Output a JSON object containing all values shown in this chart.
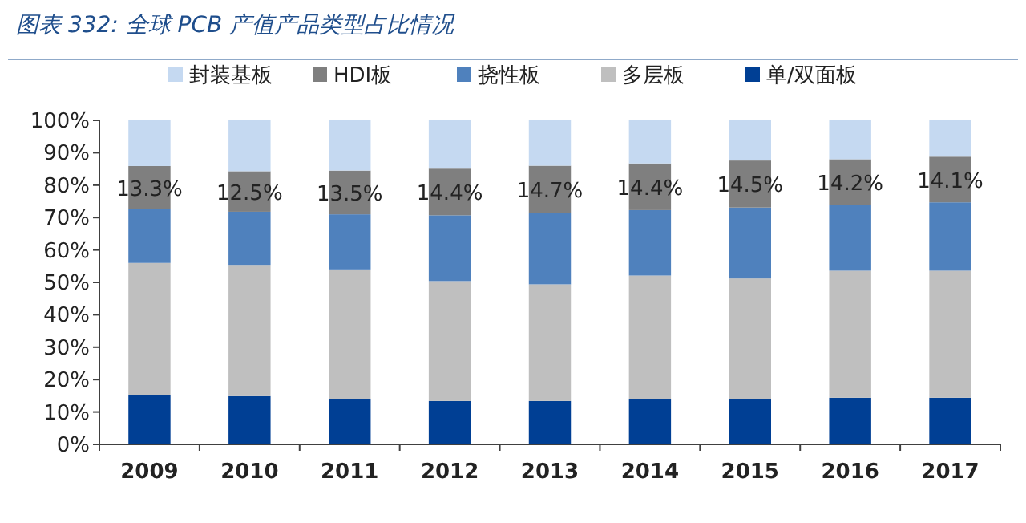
{
  "chart_data": {
    "type": "bar",
    "stacked": true,
    "title": "图表 332:  全球 PCB 产值产品类型占比情况",
    "categories": [
      "2009",
      "2010",
      "2011",
      "2012",
      "2013",
      "2014",
      "2015",
      "2016",
      "2017"
    ],
    "series": [
      {
        "name": "单/双面板",
        "color": "#003f94",
        "values": [
          15.2,
          14.9,
          14.0,
          13.4,
          13.4,
          14.0,
          14.0,
          14.4,
          14.4
        ]
      },
      {
        "name": "多层板",
        "color": "#bfbfbf",
        "values": [
          40.8,
          40.5,
          40.0,
          37.0,
          36.0,
          38.1,
          37.2,
          39.2,
          39.2
        ]
      },
      {
        "name": "挠性板",
        "color": "#4f81bd",
        "values": [
          16.6,
          16.4,
          17.0,
          20.3,
          21.9,
          20.2,
          21.9,
          20.2,
          21.1
        ]
      },
      {
        "name": "HDI板",
        "color": "#7f7f7f",
        "values": [
          13.3,
          12.5,
          13.5,
          14.4,
          14.7,
          14.4,
          14.5,
          14.2,
          14.1
        ],
        "value_labels": [
          "13.3%",
          "12.5%",
          "13.5%",
          "14.4%",
          "14.7%",
          "14.4%",
          "14.5%",
          "14.2%",
          "14.1%"
        ]
      },
      {
        "name": "封装基板",
        "color": "#c5d9f1",
        "values": [
          14.1,
          15.7,
          15.5,
          14.9,
          14.0,
          13.3,
          12.4,
          12.0,
          11.2
        ]
      }
    ],
    "ylim": [
      0,
      100
    ],
    "yticks": [
      {
        "value": 0,
        "label": "0%"
      },
      {
        "value": 10,
        "label": "10%"
      },
      {
        "value": 20,
        "label": "20%"
      },
      {
        "value": 30,
        "label": "30%"
      },
      {
        "value": 40,
        "label": "40%"
      },
      {
        "value": 50,
        "label": "50%"
      },
      {
        "value": 60,
        "label": "60%"
      },
      {
        "value": 70,
        "label": "70%"
      },
      {
        "value": 80,
        "label": "80%"
      },
      {
        "value": 90,
        "label": "90%"
      },
      {
        "value": 100,
        "label": "100%"
      }
    ],
    "legend": "top",
    "grid": false
  }
}
